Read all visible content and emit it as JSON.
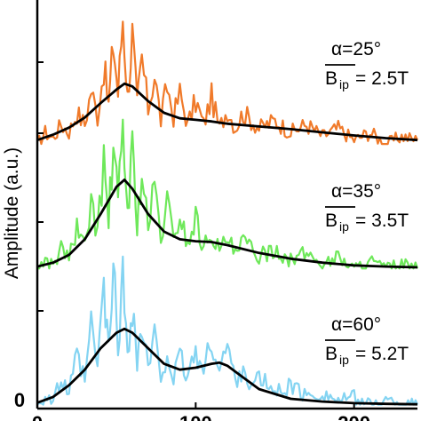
{
  "chart_data": {
    "type": "line",
    "ylabel": "Amplitude (a.u.)",
    "y_tick_labels": [
      "0"
    ],
    "x_tick_labels": [
      "0",
      "100",
      "200"
    ],
    "xlim": [
      0,
      240
    ],
    "ylim": [
      0,
      10.5
    ],
    "series_colors": {
      "orange": "#f07a2a",
      "green": "#6ee85a",
      "blue": "#84d4f2",
      "fit": "#000000"
    },
    "series": [
      {
        "offset": 6.8,
        "color": "orange",
        "annotation": {
          "alpha": "α=25°",
          "b_symbol": "B",
          "b_sub": "ip",
          "b_value": "= 2.5T"
        },
        "fit": [
          [
            0,
            0.1
          ],
          [
            10,
            0.24
          ],
          [
            20,
            0.42
          ],
          [
            30,
            0.68
          ],
          [
            40,
            1.05
          ],
          [
            50,
            1.4
          ],
          [
            55,
            1.55
          ],
          [
            60,
            1.48
          ],
          [
            70,
            1.1
          ],
          [
            80,
            0.8
          ],
          [
            90,
            0.66
          ],
          [
            100,
            0.62
          ],
          [
            110,
            0.58
          ],
          [
            120,
            0.52
          ],
          [
            140,
            0.45
          ],
          [
            160,
            0.38
          ],
          [
            180,
            0.3
          ],
          [
            200,
            0.22
          ],
          [
            220,
            0.15
          ],
          [
            240,
            0.1
          ]
        ],
        "noisy": [
          [
            0,
            0.0
          ],
          [
            5,
            0.3
          ],
          [
            10,
            0.15
          ],
          [
            15,
            0.5
          ],
          [
            20,
            0.3
          ],
          [
            25,
            0.8
          ],
          [
            30,
            0.5
          ],
          [
            34,
            1.4
          ],
          [
            38,
            0.7
          ],
          [
            42,
            2.0
          ],
          [
            45,
            1.0
          ],
          [
            48,
            2.6
          ],
          [
            51,
            1.3
          ],
          [
            54,
            3.3
          ],
          [
            57,
            1.2
          ],
          [
            60,
            2.8
          ],
          [
            63,
            1.0
          ],
          [
            66,
            2.2
          ],
          [
            70,
            0.9
          ],
          [
            74,
            1.8
          ],
          [
            78,
            0.6
          ],
          [
            82,
            1.5
          ],
          [
            86,
            0.7
          ],
          [
            90,
            1.3
          ],
          [
            95,
            0.5
          ],
          [
            100,
            1.1
          ],
          [
            105,
            0.5
          ],
          [
            110,
            1.2
          ],
          [
            115,
            0.4
          ],
          [
            120,
            0.9
          ],
          [
            125,
            0.4
          ],
          [
            130,
            0.8
          ],
          [
            140,
            0.4
          ],
          [
            150,
            0.6
          ],
          [
            160,
            0.3
          ],
          [
            170,
            0.5
          ],
          [
            180,
            0.2
          ],
          [
            190,
            0.4
          ],
          [
            200,
            0.1
          ],
          [
            210,
            0.3
          ],
          [
            220,
            0.0
          ],
          [
            230,
            0.2
          ],
          [
            240,
            0.1
          ]
        ]
      },
      {
        "offset": 3.6,
        "color": "green",
        "annotation": {
          "alpha": "α=35°",
          "b_symbol": "B",
          "b_sub": "ip",
          "b_value": "= 3.5T"
        },
        "fit": [
          [
            0,
            0.05
          ],
          [
            10,
            0.15
          ],
          [
            20,
            0.35
          ],
          [
            30,
            0.75
          ],
          [
            40,
            1.4
          ],
          [
            50,
            2.1
          ],
          [
            55,
            2.28
          ],
          [
            60,
            2.05
          ],
          [
            70,
            1.4
          ],
          [
            80,
            0.95
          ],
          [
            90,
            0.75
          ],
          [
            100,
            0.7
          ],
          [
            110,
            0.68
          ],
          [
            120,
            0.6
          ],
          [
            140,
            0.4
          ],
          [
            160,
            0.25
          ],
          [
            180,
            0.15
          ],
          [
            200,
            0.08
          ],
          [
            220,
            0.05
          ],
          [
            240,
            0.03
          ]
        ],
        "noisy": [
          [
            0,
            0.0
          ],
          [
            5,
            0.2
          ],
          [
            10,
            0.1
          ],
          [
            15,
            0.5
          ],
          [
            20,
            0.3
          ],
          [
            25,
            1.0
          ],
          [
            30,
            0.5
          ],
          [
            34,
            1.8
          ],
          [
            38,
            0.9
          ],
          [
            42,
            2.7
          ],
          [
            45,
            1.2
          ],
          [
            48,
            3.2
          ],
          [
            51,
            1.6
          ],
          [
            54,
            3.6
          ],
          [
            57,
            1.5
          ],
          [
            60,
            3.0
          ],
          [
            63,
            1.2
          ],
          [
            66,
            2.4
          ],
          [
            70,
            1.0
          ],
          [
            74,
            2.1
          ],
          [
            78,
            0.8
          ],
          [
            82,
            1.7
          ],
          [
            86,
            0.7
          ],
          [
            90,
            1.4
          ],
          [
            95,
            0.6
          ],
          [
            100,
            1.3
          ],
          [
            105,
            0.5
          ],
          [
            110,
            1.0
          ],
          [
            115,
            0.4
          ],
          [
            120,
            0.8
          ],
          [
            125,
            0.3
          ],
          [
            130,
            0.7
          ],
          [
            140,
            0.3
          ],
          [
            150,
            0.5
          ],
          [
            160,
            0.2
          ],
          [
            170,
            0.4
          ],
          [
            180,
            0.1
          ],
          [
            190,
            0.3
          ],
          [
            200,
            0.0
          ],
          [
            210,
            0.2
          ],
          [
            220,
            0.0
          ],
          [
            230,
            0.1
          ],
          [
            240,
            0.0
          ]
        ]
      },
      {
        "offset": 0.1,
        "color": "blue",
        "annotation": {
          "alpha": "α=60°",
          "b_symbol": "B",
          "b_sub": "ip",
          "b_value": "= 5.2T"
        },
        "fit": [
          [
            0,
            0.05
          ],
          [
            10,
            0.2
          ],
          [
            20,
            0.5
          ],
          [
            30,
            0.9
          ],
          [
            40,
            1.45
          ],
          [
            50,
            1.85
          ],
          [
            55,
            1.95
          ],
          [
            60,
            1.85
          ],
          [
            70,
            1.45
          ],
          [
            80,
            1.05
          ],
          [
            90,
            0.9
          ],
          [
            100,
            0.95
          ],
          [
            110,
            1.05
          ],
          [
            115,
            1.08
          ],
          [
            120,
            1.0
          ],
          [
            130,
            0.7
          ],
          [
            140,
            0.4
          ],
          [
            160,
            0.15
          ],
          [
            180,
            0.08
          ],
          [
            200,
            0.04
          ],
          [
            220,
            0.02
          ],
          [
            240,
            0.01
          ]
        ],
        "noisy": [
          [
            0,
            0.0
          ],
          [
            5,
            0.2
          ],
          [
            10,
            0.1
          ],
          [
            15,
            0.6
          ],
          [
            20,
            0.3
          ],
          [
            25,
            1.2
          ],
          [
            30,
            0.6
          ],
          [
            34,
            2.0
          ],
          [
            38,
            1.0
          ],
          [
            42,
            3.0
          ],
          [
            45,
            1.3
          ],
          [
            48,
            3.5
          ],
          [
            51,
            1.6
          ],
          [
            54,
            3.2
          ],
          [
            57,
            1.4
          ],
          [
            60,
            2.6
          ],
          [
            63,
            1.1
          ],
          [
            66,
            2.0
          ],
          [
            70,
            0.9
          ],
          [
            74,
            1.7
          ],
          [
            78,
            0.7
          ],
          [
            82,
            1.4
          ],
          [
            86,
            0.6
          ],
          [
            90,
            1.2
          ],
          [
            95,
            0.7
          ],
          [
            100,
            1.4
          ],
          [
            105,
            0.8
          ],
          [
            110,
            1.7
          ],
          [
            115,
            0.9
          ],
          [
            120,
            1.5
          ],
          [
            125,
            0.6
          ],
          [
            130,
            1.0
          ],
          [
            135,
            0.4
          ],
          [
            140,
            0.7
          ],
          [
            150,
            0.3
          ],
          [
            160,
            0.5
          ],
          [
            170,
            0.2
          ],
          [
            180,
            0.3
          ],
          [
            190,
            0.1
          ],
          [
            200,
            0.2
          ],
          [
            210,
            0.0
          ],
          [
            220,
            0.1
          ],
          [
            240,
            0.0
          ]
        ]
      }
    ]
  }
}
